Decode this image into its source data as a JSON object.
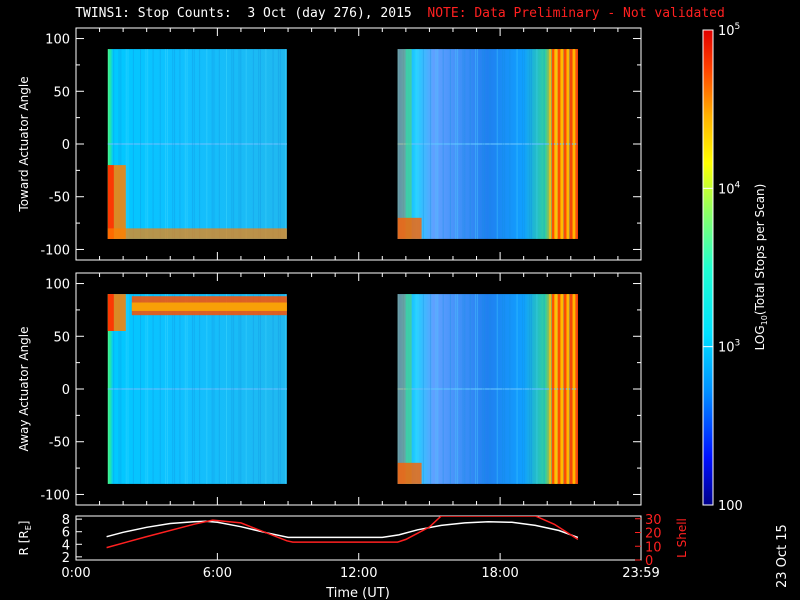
{
  "header": {
    "title": "TWINS1: Stop Counts:  3 Oct (day 276), 2015",
    "note": "NOTE: Data Preliminary - Not validated"
  },
  "footer": {
    "stamp": "23 Oct 15"
  },
  "colors": {
    "note": "#ff2020",
    "lshell": "#ff2020",
    "radius": "#ffffff"
  },
  "chart_data": [
    {
      "type": "heatmap",
      "panel": "toward",
      "ylabel": "Toward Actuator Angle",
      "ylim": [
        -110,
        110
      ],
      "yticks": [
        100,
        50,
        0,
        -50,
        -100
      ],
      "xlim": [
        0,
        23.98
      ],
      "data_intervals_ut_hours": [
        [
          1.35,
          8.95
        ],
        [
          13.65,
          21.3
        ]
      ],
      "angle_range": [
        -90,
        90
      ],
      "description_levels": "background ~10^3 (cyan-blue), edges high ~10^4-10^5"
    },
    {
      "type": "heatmap",
      "panel": "away",
      "ylabel": "Away Actuator Angle",
      "ylim": [
        -110,
        110
      ],
      "yticks": [
        100,
        50,
        0,
        -50,
        -100
      ],
      "xlim": [
        0,
        23.98
      ],
      "data_intervals_ut_hours": [
        [
          1.35,
          8.95
        ],
        [
          13.65,
          21.3
        ]
      ],
      "angle_range": [
        -90,
        90
      ]
    },
    {
      "type": "colorbar",
      "label": "LOG10(Total Stops per Scan)",
      "label_base": "LOG",
      "label_sub": "10",
      "label_rest": "(Total Stops per Scan)",
      "ticks": [
        {
          "value": 100,
          "base": "100",
          "exp": ""
        },
        {
          "value": 1000,
          "base": "10",
          "exp": "3"
        },
        {
          "value": 10000,
          "base": "10",
          "exp": "4"
        },
        {
          "value": 100000,
          "base": "10",
          "exp": "5"
        }
      ],
      "range": [
        100,
        100000
      ]
    },
    {
      "type": "line",
      "panel": "orbit",
      "xlabel": "Time (UT)",
      "xticks": [
        "0:00",
        "6:00",
        "12:00",
        "18:00",
        "23:59"
      ],
      "xtick_hours": [
        0,
        6,
        12,
        18,
        23.98
      ],
      "xlim": [
        0,
        23.98
      ],
      "left_ylabel": "R [R",
      "left_ylabel_sub": "E",
      "left_ylabel_end": "]",
      "left_ylim": [
        1.5,
        8.5
      ],
      "left_yticks": [
        2,
        4,
        6,
        8
      ],
      "right_ylabel": "L Shell",
      "right_ylim": [
        0,
        32
      ],
      "right_yticks": [
        0,
        10,
        20,
        30
      ],
      "series": [
        {
          "name": "R [RE]",
          "axis": "left",
          "color": "#ffffff",
          "x": [
            1.3,
            2,
            3,
            4,
            5,
            5.5,
            6,
            7,
            8,
            9,
            10,
            11,
            12,
            13,
            13.7,
            14.5,
            15.5,
            16.5,
            17.5,
            18.5,
            19.5,
            20.5,
            21.3
          ],
          "y": [
            5.2,
            5.9,
            6.7,
            7.3,
            7.6,
            7.65,
            7.5,
            6.8,
            5.9,
            5.1,
            5.1,
            5.1,
            5.1,
            5.1,
            5.5,
            6.3,
            7.0,
            7.4,
            7.6,
            7.5,
            7.0,
            6.2,
            5.1
          ]
        },
        {
          "name": "L Shell",
          "axis": "right",
          "color": "#ff2020",
          "x": [
            1.3,
            3,
            5,
            5.8,
            7,
            8.95,
            9.2,
            13.65,
            14,
            15,
            15.5,
            19.5,
            20.3,
            21.3
          ],
          "y": [
            9,
            17,
            26,
            29,
            27,
            14,
            13,
            13,
            15,
            24,
            32,
            32,
            26,
            15
          ]
        }
      ]
    }
  ]
}
